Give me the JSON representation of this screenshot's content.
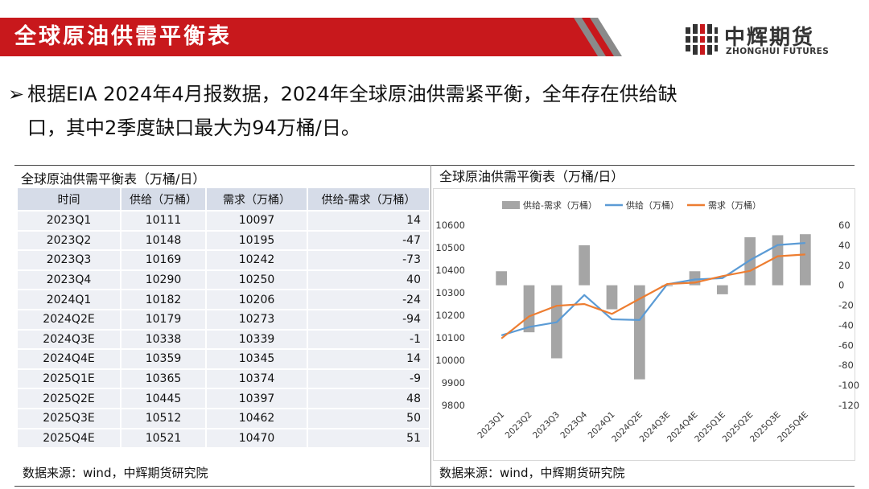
{
  "header": {
    "title": "全球原油供需平衡表",
    "logo_cn": "中辉期货",
    "logo_en": "ZHONGHUI FUTURES",
    "banner_color": "#c8181c"
  },
  "bullet": {
    "line1": "根据EIA 2024年4月报数据，2024年全球原油供需紧平衡，全年存在供给缺",
    "line2": "口，其中2季度缺口最大为94万桶/日。"
  },
  "table_panel": {
    "title": "全球原油供需平衡表（万桶/日）",
    "headers": [
      "时间",
      "供给（万桶）",
      "需求（万桶）",
      "供给-需求（万桶）"
    ],
    "rows": [
      [
        "2023Q1",
        "10111",
        "10097",
        "14"
      ],
      [
        "2023Q2",
        "10148",
        "10195",
        "-47"
      ],
      [
        "2023Q3",
        "10169",
        "10242",
        "-73"
      ],
      [
        "2023Q4",
        "10290",
        "10250",
        "40"
      ],
      [
        "2024Q1",
        "10182",
        "10206",
        "-24"
      ],
      [
        "2024Q2E",
        "10179",
        "10273",
        "-94"
      ],
      [
        "2024Q3E",
        "10338",
        "10339",
        "-1"
      ],
      [
        "2024Q4E",
        "10359",
        "10345",
        "14"
      ],
      [
        "2025Q1E",
        "10365",
        "10374",
        "-9"
      ],
      [
        "2025Q2E",
        "10445",
        "10397",
        "48"
      ],
      [
        "2025Q3E",
        "10512",
        "10462",
        "50"
      ],
      [
        "2025Q4E",
        "10521",
        "10470",
        "51"
      ]
    ],
    "source": "数据来源：wind，中辉期货研究院"
  },
  "chart_panel": {
    "title": "全球原油供需平衡表（万桶/日）",
    "source": "数据来源：wind，中辉期货研究院"
  },
  "chart_data": {
    "type": "bar+line",
    "categories": [
      "2023Q1",
      "2023Q2",
      "2023Q3",
      "2023Q4",
      "2024Q1",
      "2024Q2E",
      "2024Q3E",
      "2024Q4E",
      "2025Q1E",
      "2025Q2E",
      "2025Q3E",
      "2025Q4E"
    ],
    "series": [
      {
        "name": "供给-需求（万桶）",
        "type": "bar",
        "axis": "right",
        "color": "#a5a5a5",
        "values": [
          14,
          -47,
          -73,
          40,
          -24,
          -94,
          -1,
          14,
          -9,
          48,
          50,
          51
        ]
      },
      {
        "name": "供给（万桶）",
        "type": "line",
        "axis": "left",
        "color": "#5b9bd5",
        "values": [
          10111,
          10148,
          10169,
          10290,
          10182,
          10179,
          10338,
          10359,
          10365,
          10445,
          10512,
          10521
        ]
      },
      {
        "name": "需求（万桶）",
        "type": "line",
        "axis": "left",
        "color": "#ed7d31",
        "values": [
          10097,
          10195,
          10242,
          10250,
          10206,
          10273,
          10339,
          10345,
          10374,
          10397,
          10462,
          10470
        ]
      }
    ],
    "y_left": {
      "min": 9800,
      "max": 10600,
      "ticks": [
        9800,
        9900,
        10000,
        10100,
        10200,
        10300,
        10400,
        10500,
        10600
      ]
    },
    "y_right": {
      "min": -120,
      "max": 60,
      "ticks": [
        -120,
        -100,
        -80,
        -60,
        -40,
        -20,
        0,
        20,
        40,
        60
      ]
    },
    "legend_position": "top",
    "grid": false
  }
}
